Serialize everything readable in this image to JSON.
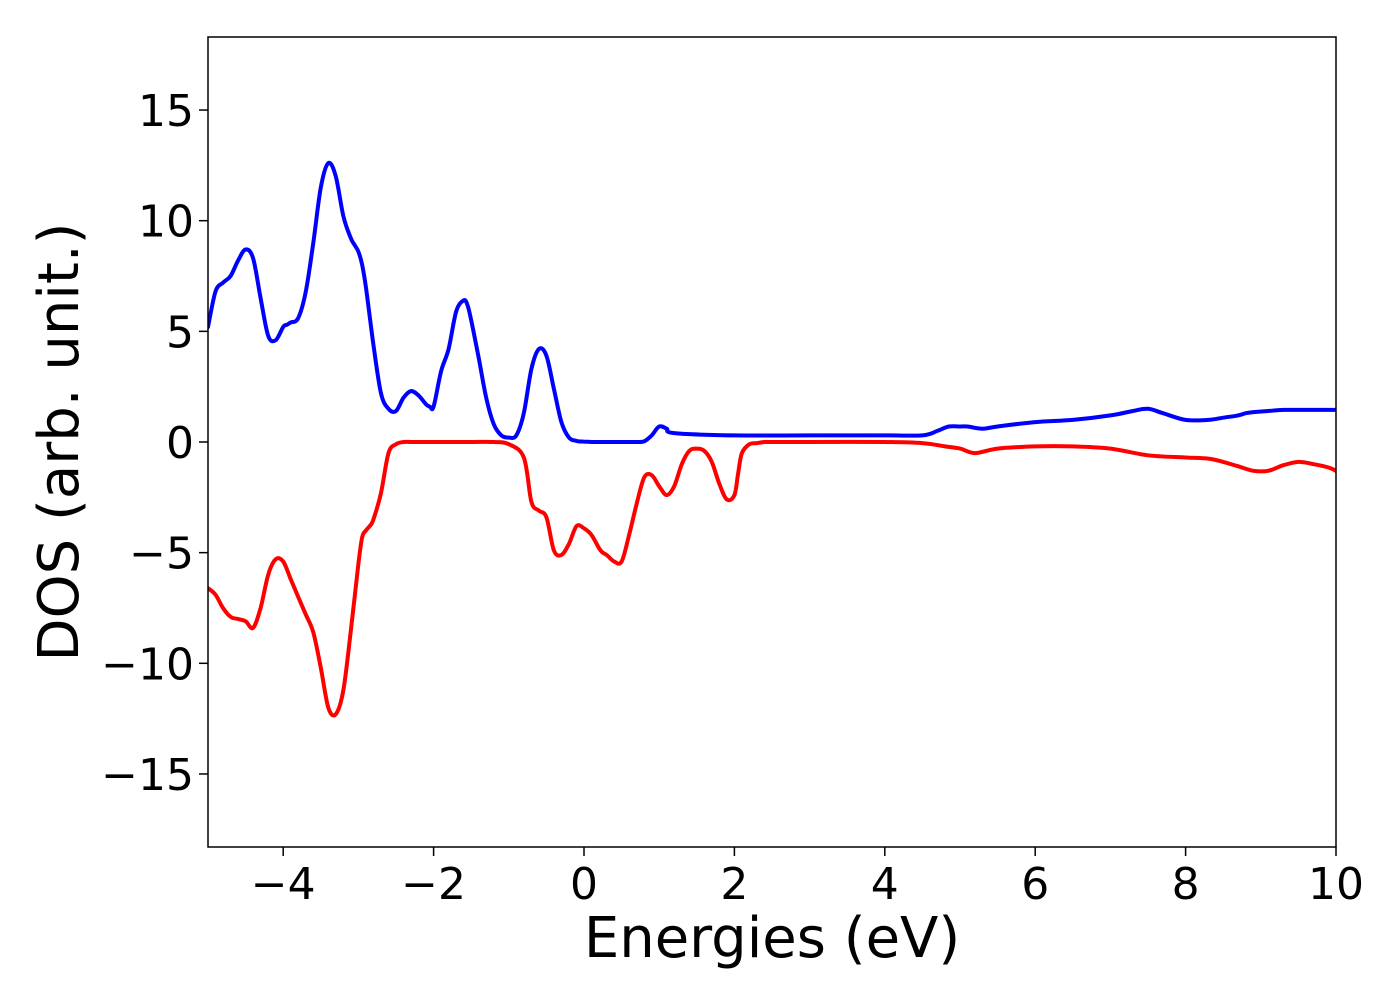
{
  "chart_data": {
    "type": "line",
    "title": "",
    "xlabel": "Energies (eV)",
    "ylabel": "DOS (arb. unit.)",
    "xlim": [
      -5,
      10
    ],
    "ylim": [
      -18.3,
      18.3
    ],
    "xticks": [
      -4,
      -2,
      0,
      2,
      4,
      6,
      8,
      10
    ],
    "xtick_labels": [
      "−4",
      "−2",
      "0",
      "2",
      "4",
      "6",
      "8",
      "10"
    ],
    "yticks": [
      15,
      10,
      5,
      0,
      -5,
      -10,
      -15
    ],
    "ytick_labels": [
      "15",
      "10",
      "5",
      "0",
      "−5",
      "−10",
      "−15"
    ],
    "grid": false,
    "legend": "none",
    "series": [
      {
        "color": "#0000ff",
        "x": [
          -5.0,
          -4.9,
          -4.8,
          -4.7,
          -4.6,
          -4.5,
          -4.4,
          -4.3,
          -4.2,
          -4.1,
          -4.0,
          -3.95,
          -3.9,
          -3.8,
          -3.7,
          -3.6,
          -3.5,
          -3.4,
          -3.3,
          -3.2,
          -3.1,
          -3.05,
          -3.0,
          -2.95,
          -2.9,
          -2.8,
          -2.7,
          -2.6,
          -2.5,
          -2.4,
          -2.3,
          -2.2,
          -2.1,
          -2.05,
          -2.0,
          -1.9,
          -1.8,
          -1.7,
          -1.6,
          -1.55,
          -1.5,
          -1.4,
          -1.3,
          -1.2,
          -1.1,
          -1.0,
          -0.9,
          -0.8,
          -0.7,
          -0.6,
          -0.5,
          -0.4,
          -0.3,
          -0.2,
          -0.1,
          0.0,
          0.1,
          0.2,
          0.3,
          0.4,
          0.45,
          0.5,
          0.6,
          0.7,
          0.8,
          0.9,
          1.0,
          1.1,
          1.2,
          2.0,
          3.0,
          4.0,
          4.5,
          4.7,
          4.85,
          5.0,
          5.1,
          5.3,
          5.5,
          6.0,
          6.5,
          7.0,
          7.3,
          7.5,
          7.7,
          8.0,
          8.3,
          8.5,
          8.7,
          8.8,
          8.9,
          9.1,
          9.3,
          9.5,
          9.7,
          9.9,
          10.0
        ],
        "y": [
          5.2,
          6.8,
          7.2,
          7.5,
          8.2,
          8.7,
          8.3,
          6.5,
          4.8,
          4.6,
          5.2,
          5.3,
          5.4,
          5.6,
          6.8,
          9.0,
          11.5,
          12.6,
          12.0,
          10.2,
          9.2,
          8.9,
          8.6,
          8.0,
          7.0,
          4.4,
          2.2,
          1.5,
          1.4,
          2.0,
          2.3,
          2.1,
          1.7,
          1.6,
          1.6,
          3.2,
          4.2,
          5.9,
          6.4,
          6.2,
          5.5,
          3.8,
          2.0,
          0.8,
          0.3,
          0.2,
          0.3,
          1.3,
          3.3,
          4.2,
          3.9,
          2.4,
          0.9,
          0.2,
          0.05,
          0.02,
          0.0,
          0.0,
          0.0,
          0.0,
          0.0,
          0.0,
          0.0,
          0.0,
          0.03,
          0.3,
          0.7,
          0.6,
          0.4,
          0.3,
          0.3,
          0.3,
          0.3,
          0.5,
          0.7,
          0.7,
          0.7,
          0.6,
          0.7,
          0.9,
          1.0,
          1.2,
          1.4,
          1.5,
          1.3,
          1.0,
          1.0,
          1.1,
          1.2,
          1.3,
          1.35,
          1.4,
          1.45,
          1.45,
          1.45,
          1.45,
          1.45
        ]
      },
      {
        "color": "#ff0000",
        "x": [
          -5.0,
          -4.9,
          -4.8,
          -4.7,
          -4.6,
          -4.5,
          -4.4,
          -4.3,
          -4.2,
          -4.1,
          -4.0,
          -3.9,
          -3.8,
          -3.7,
          -3.6,
          -3.5,
          -3.4,
          -3.3,
          -3.2,
          -3.1,
          -3.0,
          -2.95,
          -2.9,
          -2.85,
          -2.8,
          -2.7,
          -2.6,
          -2.5,
          -2.4,
          -2.3,
          -2.2,
          -2.1,
          -2.0,
          -1.8,
          -1.5,
          -1.2,
          -1.0,
          -0.8,
          -0.7,
          -0.6,
          -0.5,
          -0.4,
          -0.3,
          -0.2,
          -0.1,
          0.0,
          0.1,
          0.2,
          0.25,
          0.3,
          0.4,
          0.5,
          0.6,
          0.7,
          0.8,
          0.9,
          1.0,
          1.1,
          1.2,
          1.3,
          1.4,
          1.5,
          1.6,
          1.7,
          1.8,
          1.9,
          2.0,
          2.05,
          2.1,
          2.2,
          2.3,
          2.4,
          2.45,
          2.5,
          2.6,
          2.7,
          2.8,
          3.0,
          4.0,
          4.5,
          4.8,
          5.0,
          5.2,
          5.5,
          6.0,
          6.5,
          7.0,
          7.5,
          8.0,
          8.3,
          8.5,
          8.7,
          8.9,
          9.1,
          9.3,
          9.5,
          9.7,
          9.9,
          10.0
        ],
        "y": [
          -6.6,
          -6.9,
          -7.5,
          -7.9,
          -8.0,
          -8.1,
          -8.4,
          -7.5,
          -6.0,
          -5.3,
          -5.4,
          -6.2,
          -7.0,
          -7.8,
          -8.6,
          -10.2,
          -12.0,
          -12.3,
          -11.2,
          -8.5,
          -5.5,
          -4.3,
          -4.0,
          -3.8,
          -3.5,
          -2.3,
          -0.5,
          -0.1,
          0.0,
          0.0,
          0.0,
          0.0,
          0.0,
          0.0,
          0.0,
          0.0,
          -0.1,
          -0.7,
          -2.7,
          -3.1,
          -3.4,
          -4.9,
          -5.1,
          -4.6,
          -3.8,
          -3.9,
          -4.2,
          -4.8,
          -5.0,
          -5.1,
          -5.4,
          -5.4,
          -4.2,
          -2.8,
          -1.6,
          -1.5,
          -2.0,
          -2.4,
          -2.0,
          -1.0,
          -0.4,
          -0.3,
          -0.4,
          -0.9,
          -1.9,
          -2.6,
          -2.4,
          -1.4,
          -0.5,
          -0.1,
          -0.05,
          0.0,
          0.0,
          0.0,
          0.0,
          0.0,
          0.0,
          0.0,
          0.0,
          -0.05,
          -0.2,
          -0.3,
          -0.5,
          -0.3,
          -0.2,
          -0.2,
          -0.3,
          -0.6,
          -0.7,
          -0.75,
          -0.9,
          -1.1,
          -1.3,
          -1.3,
          -1.05,
          -0.9,
          -1.0,
          -1.15,
          -1.3
        ]
      }
    ]
  }
}
